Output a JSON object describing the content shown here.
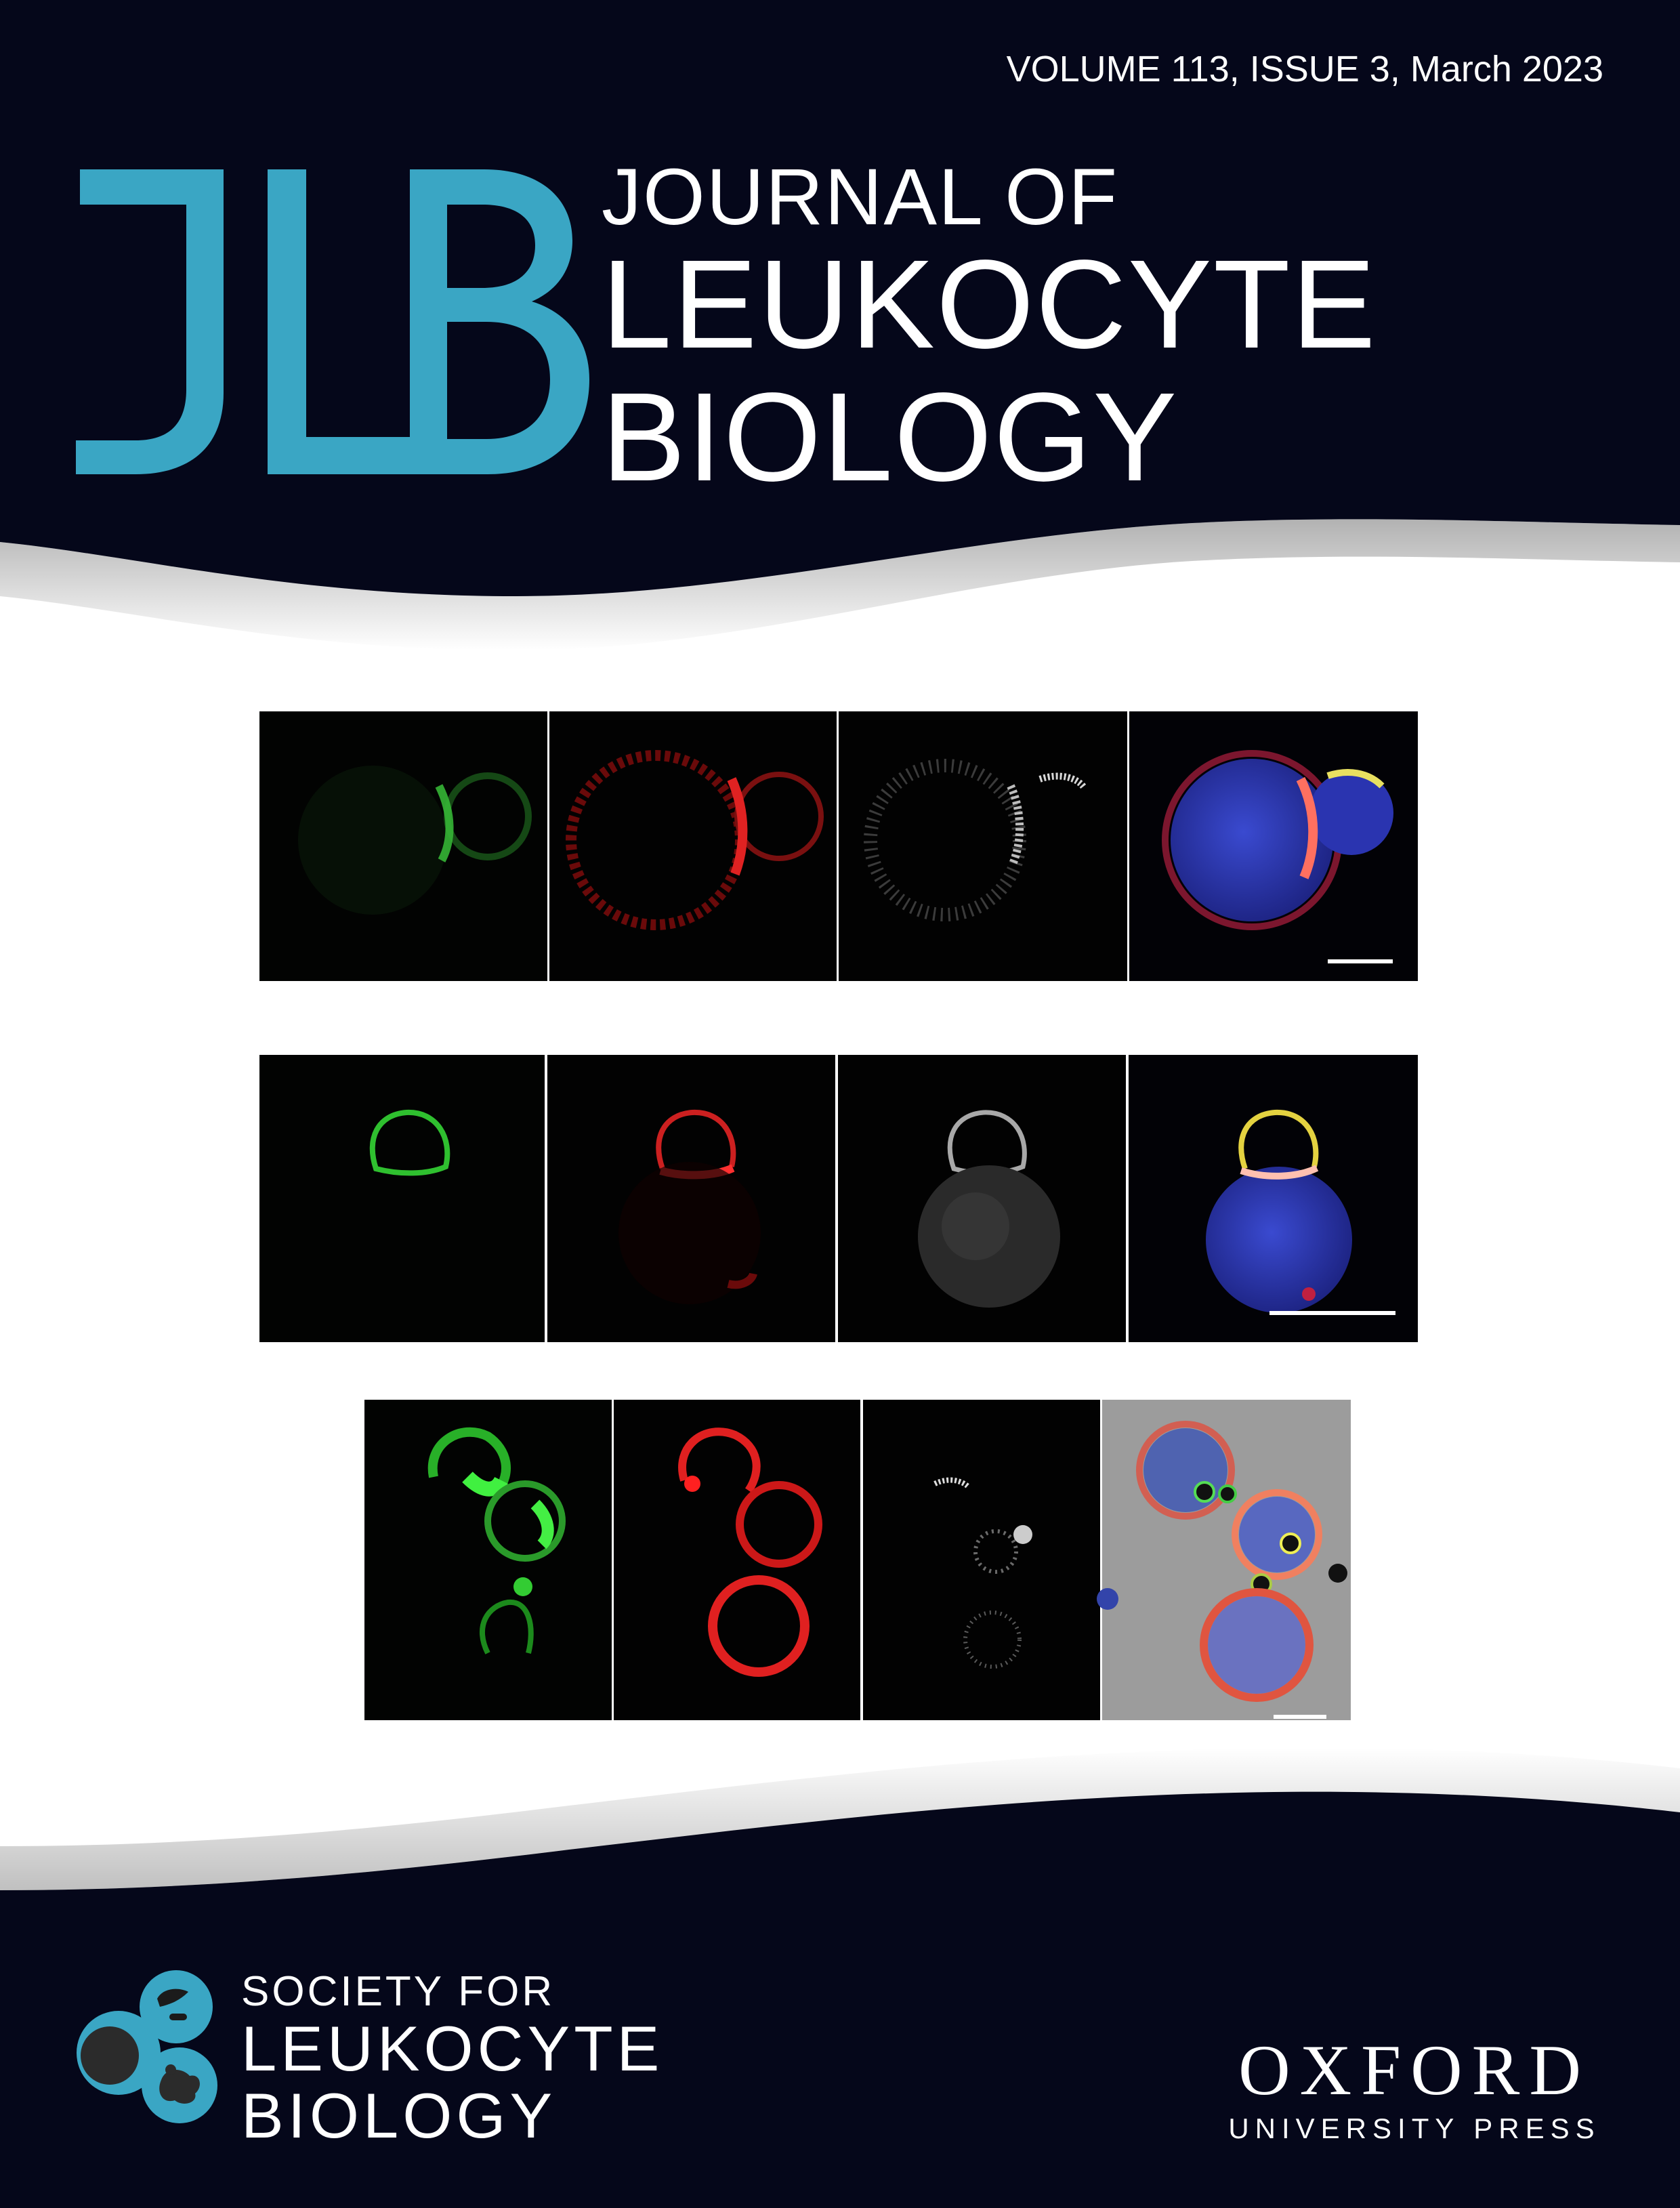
{
  "issue_line": "VOLUME 113, ISSUE 3, March 2023",
  "logo": {
    "letters": "JLB"
  },
  "journal_title": {
    "line1": "JOURNAL OF",
    "line2": "LEUKOCYTE",
    "line3": "BIOLOGY"
  },
  "society_logo": {
    "line1": "SOCIETY FOR",
    "line2": "LEUKOCYTE",
    "line3": "BIOLOGY"
  },
  "publisher_logo": {
    "line1": "OXFORD",
    "line2": "UNIVERSITY PRESS"
  },
  "colors": {
    "navy": "#05071a",
    "brand_teal": "#3aa6c4",
    "white": "#ffffff"
  },
  "figure_rows": [
    {
      "panels": [
        "green",
        "red",
        "gray",
        "merge"
      ]
    },
    {
      "panels": [
        "green",
        "red",
        "gray",
        "merge"
      ]
    },
    {
      "panels": [
        "green",
        "red",
        "gray",
        "merge-dic"
      ]
    }
  ]
}
